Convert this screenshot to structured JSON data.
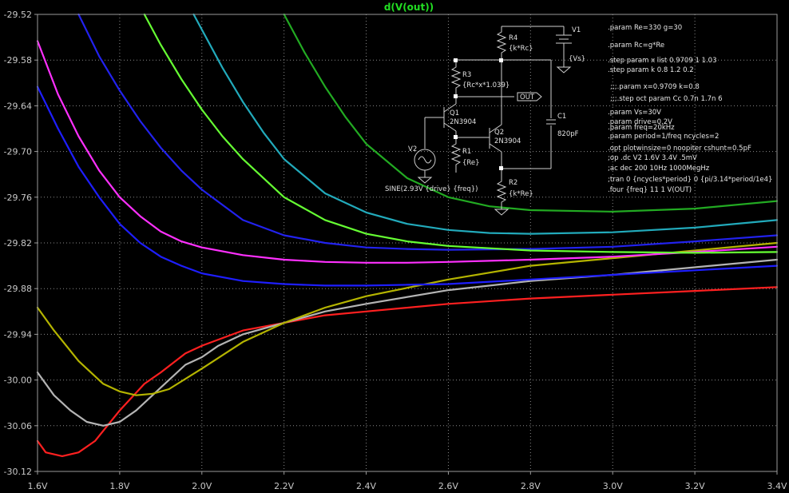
{
  "chart_data": {
    "type": "line",
    "title": "d(V(out))",
    "xlim": [
      1.6,
      3.4
    ],
    "ylim": [
      -30.12,
      -29.52
    ],
    "x_ticks": [
      "1.6V",
      "1.8V",
      "2.0V",
      "2.2V",
      "2.4V",
      "2.6V",
      "2.8V",
      "3.0V",
      "3.2V",
      "3.4V"
    ],
    "y_ticks": [
      "-29.52",
      "-29.58",
      "-29.64",
      "-29.70",
      "-29.76",
      "-29.82",
      "-29.88",
      "-29.94",
      "-30.00",
      "-30.06",
      "-30.12"
    ],
    "grid": true,
    "series": [
      {
        "color": "#ff2020",
        "x": [
          1.6,
          1.62,
          1.66,
          1.7,
          1.74,
          1.8,
          1.86,
          1.9,
          1.96,
          2.0,
          2.1,
          2.2,
          2.3,
          2.4,
          2.6,
          2.8,
          3.0,
          3.2,
          3.4
        ],
        "y": [
          -30.08,
          -30.095,
          -30.1,
          -30.095,
          -30.08,
          -30.04,
          -30.005,
          -29.99,
          -29.965,
          -29.955,
          -29.935,
          -29.925,
          -29.915,
          -29.91,
          -29.9,
          -29.893,
          -29.888,
          -29.883,
          -29.878
        ]
      },
      {
        "color": "#b4b4b4",
        "x": [
          1.6,
          1.64,
          1.68,
          1.72,
          1.76,
          1.8,
          1.84,
          1.9,
          1.96,
          2.0,
          2.04,
          2.1,
          2.2,
          2.3,
          2.4,
          2.6,
          2.8,
          3.0,
          3.2,
          3.4
        ],
        "y": [
          -29.99,
          -30.02,
          -30.04,
          -30.055,
          -30.06,
          -30.055,
          -30.04,
          -30.01,
          -29.98,
          -29.97,
          -29.955,
          -29.94,
          -29.925,
          -29.91,
          -29.9,
          -29.882,
          -29.87,
          -29.862,
          -29.852,
          -29.842
        ]
      },
      {
        "color": "#b4b400",
        "x": [
          1.6,
          1.64,
          1.7,
          1.76,
          1.8,
          1.84,
          1.88,
          1.92,
          2.0,
          2.1,
          2.2,
          2.3,
          2.4,
          2.6,
          2.8,
          3.0,
          3.2,
          3.4
        ],
        "y": [
          -29.905,
          -29.935,
          -29.975,
          -30.005,
          -30.015,
          -30.02,
          -30.018,
          -30.012,
          -29.985,
          -29.95,
          -29.925,
          -29.905,
          -29.89,
          -29.868,
          -29.85,
          -29.84,
          -29.83,
          -29.82
        ]
      },
      {
        "color": "#1e1eff",
        "x": [
          1.6,
          1.65,
          1.7,
          1.75,
          1.8,
          1.85,
          1.9,
          1.95,
          2.0,
          2.1,
          2.2,
          2.3,
          2.4,
          2.5,
          2.6,
          2.8,
          3.0,
          3.2,
          3.4
        ],
        "y": [
          -29.615,
          -29.67,
          -29.72,
          -29.76,
          -29.795,
          -29.82,
          -29.838,
          -29.85,
          -29.86,
          -29.87,
          -29.874,
          -29.876,
          -29.876,
          -29.875,
          -29.874,
          -29.868,
          -29.862,
          -29.856,
          -29.85
        ]
      },
      {
        "color": "#ff30ff",
        "x": [
          1.6,
          1.65,
          1.7,
          1.75,
          1.8,
          1.85,
          1.9,
          1.95,
          2.0,
          2.1,
          2.2,
          2.3,
          2.4,
          2.5,
          2.6,
          2.8,
          3.0,
          3.2,
          3.4
        ],
        "y": [
          -29.555,
          -29.625,
          -29.68,
          -29.725,
          -29.76,
          -29.785,
          -29.805,
          -29.818,
          -29.826,
          -29.836,
          -29.842,
          -29.845,
          -29.846,
          -29.846,
          -29.845,
          -29.842,
          -29.838,
          -29.832,
          -29.825
        ]
      },
      {
        "color": "#2222ee",
        "x": [
          1.7,
          1.75,
          1.8,
          1.85,
          1.9,
          1.95,
          2.0,
          2.1,
          2.2,
          2.3,
          2.4,
          2.5,
          2.6,
          2.8,
          3.0,
          3.2,
          3.4
        ],
        "y": [
          -29.52,
          -29.575,
          -29.62,
          -29.66,
          -29.695,
          -29.725,
          -29.75,
          -29.79,
          -29.81,
          -29.82,
          -29.826,
          -29.828,
          -29.829,
          -29.828,
          -29.825,
          -29.818,
          -29.81
        ]
      },
      {
        "color": "#66ff33",
        "x": [
          1.86,
          1.9,
          1.95,
          2.0,
          2.05,
          2.1,
          2.2,
          2.3,
          2.4,
          2.5,
          2.6,
          2.8,
          3.0,
          3.2,
          3.4
        ],
        "y": [
          -29.52,
          -29.56,
          -29.605,
          -29.645,
          -29.68,
          -29.71,
          -29.76,
          -29.79,
          -29.808,
          -29.818,
          -29.824,
          -29.83,
          -29.832,
          -29.833,
          -29.832
        ]
      },
      {
        "color": "#22aabb",
        "x": [
          1.98,
          2.0,
          2.05,
          2.1,
          2.15,
          2.2,
          2.3,
          2.4,
          2.5,
          2.6,
          2.7,
          2.8,
          3.0,
          3.2,
          3.4
        ],
        "y": [
          -29.52,
          -29.54,
          -29.59,
          -29.635,
          -29.675,
          -29.71,
          -29.755,
          -29.78,
          -29.795,
          -29.803,
          -29.807,
          -29.808,
          -29.806,
          -29.8,
          -29.79
        ]
      },
      {
        "color": "#22aa22",
        "x": [
          2.2,
          2.25,
          2.3,
          2.35,
          2.4,
          2.5,
          2.6,
          2.7,
          2.8,
          3.0,
          3.2,
          3.4
        ],
        "y": [
          -29.52,
          -29.57,
          -29.615,
          -29.655,
          -29.69,
          -29.735,
          -29.76,
          -29.772,
          -29.777,
          -29.779,
          -29.775,
          -29.765
        ]
      }
    ]
  },
  "schematic": {
    "r4": {
      "name": "R4",
      "value": "{k*Rc}"
    },
    "v1": {
      "name": "V1",
      "value": "{Vs}"
    },
    "r3": {
      "name": "R3",
      "value": "{Rc*x*1.039}"
    },
    "out": "OUT",
    "q1": {
      "name": "Q1",
      "model": "2N3904"
    },
    "q2": {
      "name": "Q2",
      "model": "2N3904"
    },
    "c1": {
      "name": "C1",
      "value": "820pF"
    },
    "r1": {
      "name": "R1",
      "value": "{Re}"
    },
    "r2": {
      "name": "R2",
      "value": "{k*Re}"
    },
    "v2": {
      "name": "V2",
      "value": "SINE(2.93V {drive} {freq})"
    }
  },
  "directives": [
    ".param Re=330  g=30",
    ".param Rc=g*Re",
    ".step param x list 0.9709 1 1.03",
    ".step param k 0.8 1.2 0.2",
    ";;;.param x=0.9709 k=0.8",
    ";;;.step oct param Cc 0.7n 1.7n 6",
    ".param Vs=30V",
    ".param drive=0.2V",
    ".param freq=20kHz",
    ".param period=1/freq  ncycles=2",
    ".opt plotwinsize=0  noopiter cshunt=0.5pF",
    ";op     .dc V2 1.6V 3.4V .5mV",
    ";ac dec 200 10Hz 1000MegHz",
    ";tran 0 {ncycles*period} 0 {pi/3.14*period/1e4}",
    ".four {freq} 11 1 V(OUT)"
  ]
}
